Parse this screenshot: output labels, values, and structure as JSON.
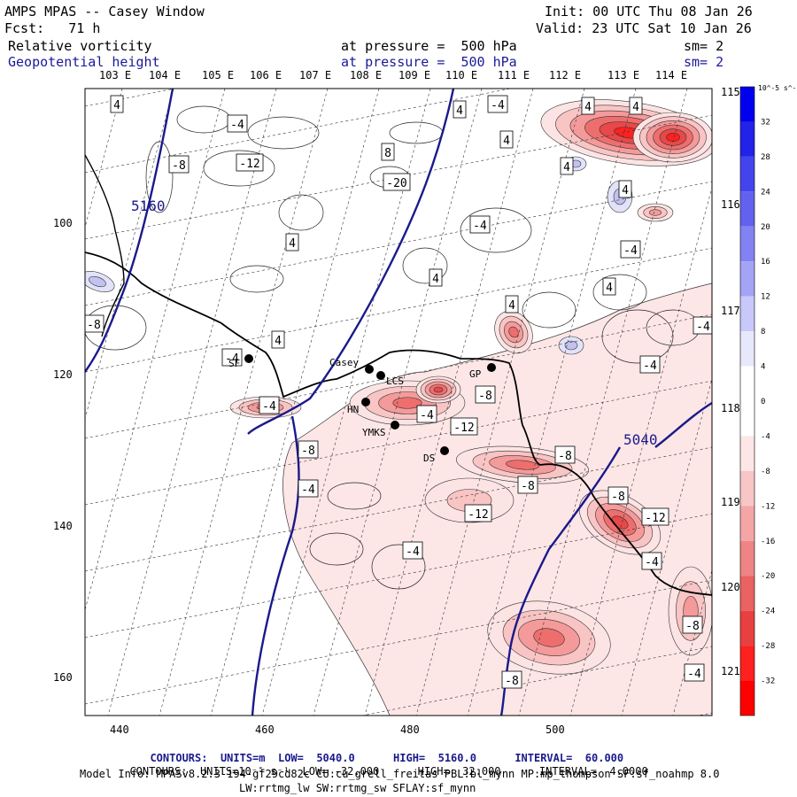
{
  "header": {
    "title": "AMPS MPAS -- Casey Window",
    "init": "Init: 00 UTC Thu 08 Jan 26",
    "forecast": "Fcst:   71 h",
    "valid": "Valid: 23 UTC Sat 10 Jan 26",
    "field1_name": "Relative vorticity",
    "field1_level": "at pressure =  500 hPa",
    "field1_smooth": "sm= 2",
    "field2_name": "Geopotential height",
    "field2_level": "at pressure =  500 hPa",
    "field2_smooth": "sm= 2"
  },
  "map": {
    "top_lon_labels": [
      "103 E",
      "104 E",
      "105 E",
      "106 E",
      "107 E",
      "108 E",
      "109 E",
      "110 E",
      "111 E",
      "112 E",
      "113 E",
      "114 E"
    ],
    "right_lon_labels": [
      "115 E",
      "116 E",
      "117 E",
      "118 E",
      "119 E",
      "120 E",
      "121 E"
    ],
    "x_ticks": [
      "440",
      "460",
      "480",
      "500"
    ],
    "y_ticks": [
      "100",
      "120",
      "140",
      "160"
    ],
    "height_contour_labels": [
      "5160",
      "5040"
    ],
    "stations": [
      "SF",
      "Casey",
      "LCS",
      "HN",
      "YMKS",
      "DS",
      "GP"
    ],
    "vort_labels": [
      "4",
      "-4",
      "-8",
      "-12",
      "-20",
      "8",
      "4",
      "4",
      "-4",
      "4",
      "4",
      "4",
      "4",
      "4",
      "-4",
      "4",
      "-4",
      "4",
      "4",
      "4",
      "-4",
      "-8",
      "-4",
      "-4",
      "-8",
      "-4",
      "-4",
      "-12",
      "-8",
      "-4",
      "-8",
      "-8",
      "-12",
      "-4",
      "-8",
      "-12",
      "-4",
      "-8",
      "-4",
      "-8"
    ],
    "colors": {
      "height_contour": "#1a1a8c",
      "coast": "#000000",
      "vort_neg_strong": "#ff2020",
      "vort_pos": "#3a3ad8"
    }
  },
  "colorbar": {
    "units": "10^-5 s^-1",
    "labels": [
      "32",
      "28",
      "24",
      "20",
      "16",
      "12",
      "8",
      "4",
      "0",
      "-4",
      "-8",
      "-12",
      "-16",
      "-20",
      "-24",
      "-28",
      "-32"
    ]
  },
  "footer": {
    "line1_label": "CONTOURS:",
    "line1_units": "UNITS=m",
    "line1_low": "LOW=  5040.0",
    "line1_high": "HIGH=  5160.0",
    "line1_interval": "INTERVAL=  60.000",
    "line2_label": "CONTOURS:",
    "line2_units": "UNITS=10⁻⁵ s⁻¹",
    "line2_low": "LOW= -32.000",
    "line2_high": "HIGH=  32.000",
    "line2_interval": "INTERVAL=  4.0000",
    "model_info": "Model Info: MPASv8.2.3-194-gf29cd82c CU:cu_grell_freitas PBL:bl_mynn MP:mp_thompson SF:sf_noahmp 8.0",
    "model_info2": "LW:rrtmg_lw SW:rrtmg_sw SFLAY:sf_mynn"
  }
}
